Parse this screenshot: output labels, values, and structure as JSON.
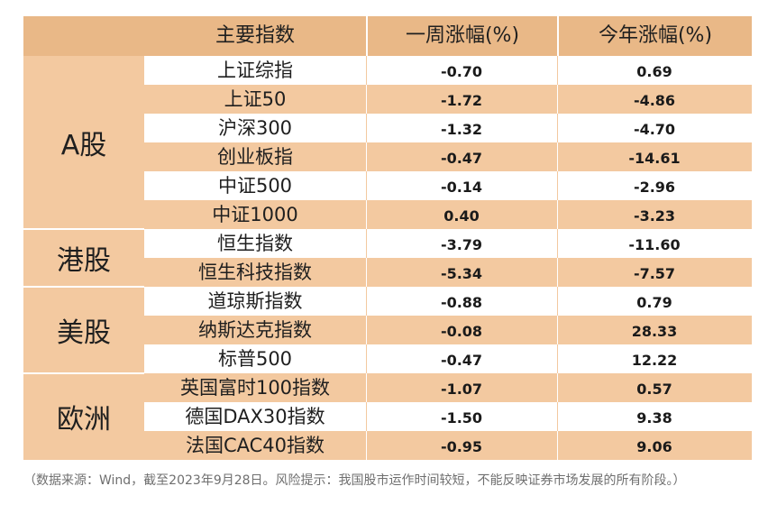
{
  "header": {
    "col1": "主要指数",
    "col2": "一周涨幅(%)",
    "col3": "今年涨幅(%)"
  },
  "groups": [
    {
      "label": "A股",
      "rows": [
        {
          "name": "上证综指",
          "week": "-0.70",
          "ytd": "0.69"
        },
        {
          "name": "上证50",
          "week": "-1.72",
          "ytd": "-4.86"
        },
        {
          "name": "沪深300",
          "week": "-1.32",
          "ytd": "-4.70"
        },
        {
          "name": "创业板指",
          "week": "-0.47",
          "ytd": "-14.61"
        },
        {
          "name": "中证500",
          "week": "-0.14",
          "ytd": "-2.96"
        },
        {
          "name": "中证1000",
          "week": "0.40",
          "ytd": "-3.23"
        }
      ]
    },
    {
      "label": "港股",
      "rows": [
        {
          "name": "恒生指数",
          "week": "-3.79",
          "ytd": "-11.60"
        },
        {
          "name": "恒生科技指数",
          "week": "-5.34",
          "ytd": "-7.57"
        }
      ]
    },
    {
      "label": "美股",
      "rows": [
        {
          "name": "道琼斯指数",
          "week": "-0.88",
          "ytd": "0.79"
        },
        {
          "name": "纳斯达克指数",
          "week": "-0.08",
          "ytd": "28.33"
        },
        {
          "name": "标普500",
          "week": "-0.47",
          "ytd": "12.22"
        }
      ]
    },
    {
      "label": "欧洲",
      "rows": [
        {
          "name": "英国富时100指数",
          "week": "-1.07",
          "ytd": "0.57"
        },
        {
          "name": "德国DAX30指数",
          "week": "-1.50",
          "ytd": "9.38"
        },
        {
          "name": "法国CAC40指数",
          "week": "-0.95",
          "ytd": "9.06"
        }
      ]
    }
  ],
  "footnote": "（数据来源：Wind，截至2023年9月28日。风险提示：我国股市运作时间较短，不能反映证券市场发展的所有阶段。）"
}
